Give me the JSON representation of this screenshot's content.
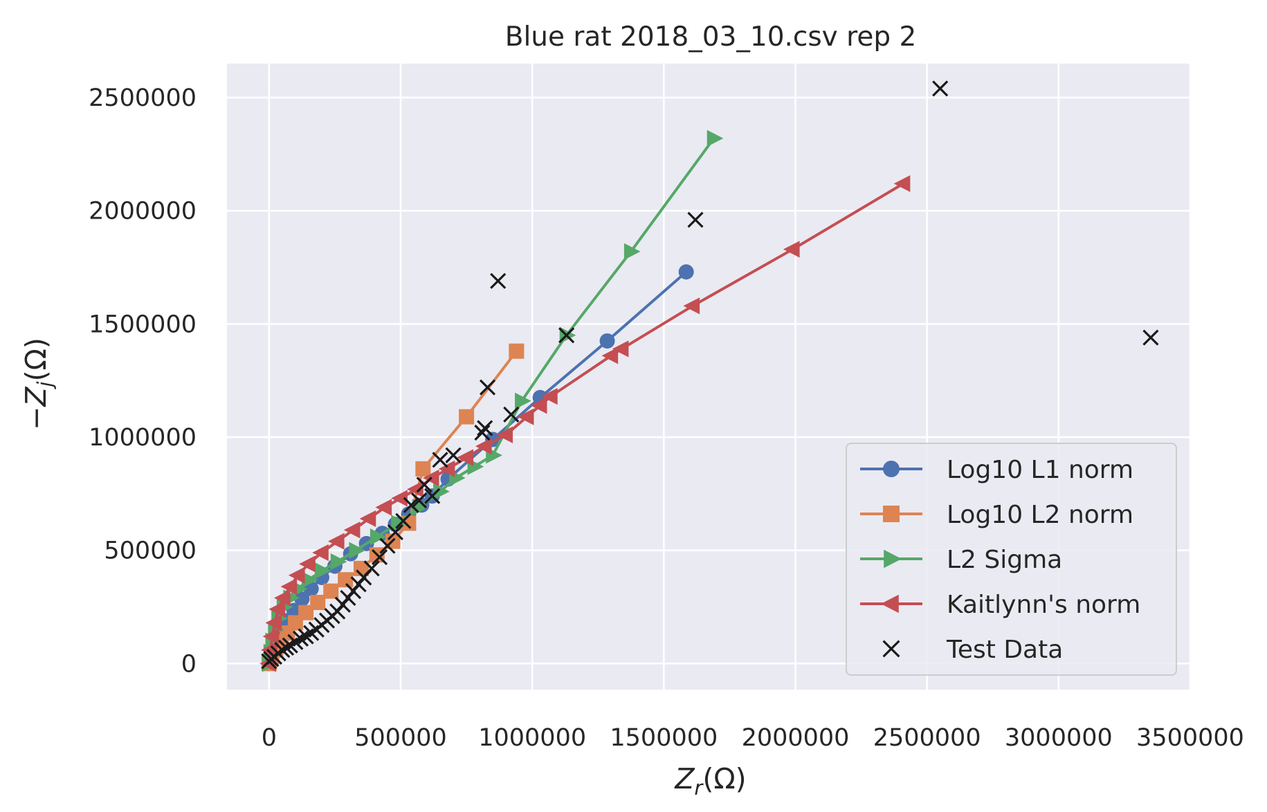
{
  "chart_data": {
    "type": "line",
    "title": "Blue rat 2018_03_10.csv rep 2",
    "xlabel": {
      "main": "Z",
      "sub": "r",
      "unit": "(Ω)"
    },
    "ylabel": {
      "prefix": "−",
      "main": "Z",
      "sub": "j",
      "unit": "(Ω)"
    },
    "xlim": [
      -160000,
      3500000
    ],
    "ylim": [
      -115000,
      2650000
    ],
    "xticks": [
      0,
      500000,
      1000000,
      1500000,
      2000000,
      2500000,
      3000000,
      3500000
    ],
    "yticks": [
      0,
      500000,
      1000000,
      1500000,
      2000000,
      2500000
    ],
    "xtick_labels": [
      "0",
      "500000",
      "1000000",
      "1500000",
      "2000000",
      "2500000",
      "3000000",
      "3500000"
    ],
    "ytick_labels": [
      "0",
      "500000",
      "1000000",
      "1500000",
      "2000000",
      "2500000"
    ],
    "grid": true,
    "legend_position": "lower-right",
    "series": [
      {
        "name": "Log10 L1 norm",
        "color": "#4c72b0",
        "marker": "circle",
        "x": [
          0,
          10000,
          20000,
          35000,
          50000,
          70000,
          95000,
          125000,
          160000,
          200000,
          250000,
          310000,
          370000,
          430000,
          480000,
          530000,
          580000,
          620000,
          680000,
          850000,
          1030000,
          1285000,
          1585000
        ],
        "y": [
          0,
          40000,
          80000,
          115000,
          150000,
          190000,
          235000,
          285000,
          330000,
          380000,
          430000,
          485000,
          530000,
          575000,
          615000,
          660000,
          700000,
          740000,
          815000,
          990000,
          1175000,
          1425000,
          1730000
        ]
      },
      {
        "name": "Log10 L2 norm",
        "color": "#dd8452",
        "marker": "square",
        "x": [
          0,
          10000,
          25000,
          45000,
          70000,
          100000,
          140000,
          185000,
          235000,
          290000,
          350000,
          410000,
          470000,
          530000,
          585000,
          750000,
          940000
        ],
        "y": [
          0,
          30000,
          60000,
          95000,
          135000,
          180000,
          225000,
          270000,
          320000,
          370000,
          420000,
          480000,
          540000,
          620000,
          860000,
          1090000,
          1380000
        ]
      },
      {
        "name": "L2 Sigma",
        "color": "#55a868",
        "marker": "triangle-right",
        "x": [
          0,
          5000,
          12000,
          22000,
          35000,
          55000,
          80000,
          110000,
          150000,
          200000,
          260000,
          330000,
          410000,
          490000,
          570000,
          650000,
          710000,
          780000,
          850000,
          960000,
          1130000,
          1375000,
          1690000
        ],
        "y": [
          0,
          50000,
          100000,
          150000,
          200000,
          250000,
          290000,
          330000,
          370000,
          410000,
          450000,
          500000,
          560000,
          620000,
          690000,
          760000,
          820000,
          870000,
          920000,
          1160000,
          1450000,
          1820000,
          2320000
        ]
      },
      {
        "name": "Kaitlynn's norm",
        "color": "#c44e52",
        "marker": "triangle-left",
        "x": [
          0,
          5000,
          12000,
          22000,
          35000,
          55000,
          80000,
          110000,
          150000,
          200000,
          260000,
          320000,
          380000,
          440000,
          500000,
          560000,
          620000,
          680000,
          750000,
          820000,
          900000,
          980000,
          1030000,
          1070000,
          1300000,
          1340000,
          1610000,
          1990000,
          2410000
        ],
        "y": [
          0,
          60000,
          120000,
          180000,
          240000,
          290000,
          340000,
          390000,
          440000,
          490000,
          540000,
          590000,
          640000,
          690000,
          730000,
          770000,
          820000,
          860000,
          910000,
          960000,
          1010000,
          1090000,
          1140000,
          1180000,
          1360000,
          1390000,
          1580000,
          1830000,
          2120000
        ]
      },
      {
        "name": "Test Data",
        "color": "#1a1a1a",
        "marker": "x",
        "linestyle": "none",
        "x": [
          0,
          8000,
          20000,
          35000,
          50000,
          65000,
          80000,
          100000,
          120000,
          140000,
          160000,
          180000,
          200000,
          220000,
          240000,
          260000,
          280000,
          300000,
          320000,
          340000,
          360000,
          390000,
          420000,
          450000,
          480000,
          510000,
          540000,
          570000,
          590000,
          620000,
          650000,
          700000,
          810000,
          820000,
          830000,
          870000,
          920000,
          1130000,
          1620000,
          2550000,
          3350000
        ],
        "y": [
          10000,
          20000,
          30000,
          45000,
          60000,
          70000,
          80000,
          95000,
          110000,
          120000,
          135000,
          150000,
          170000,
          190000,
          210000,
          230000,
          260000,
          290000,
          320000,
          350000,
          380000,
          420000,
          470000,
          520000,
          580000,
          630000,
          700000,
          720000,
          790000,
          740000,
          900000,
          920000,
          1020000,
          1040000,
          1220000,
          1690000,
          1100000,
          1450000,
          1960000,
          2540000,
          1440000
        ]
      }
    ]
  }
}
